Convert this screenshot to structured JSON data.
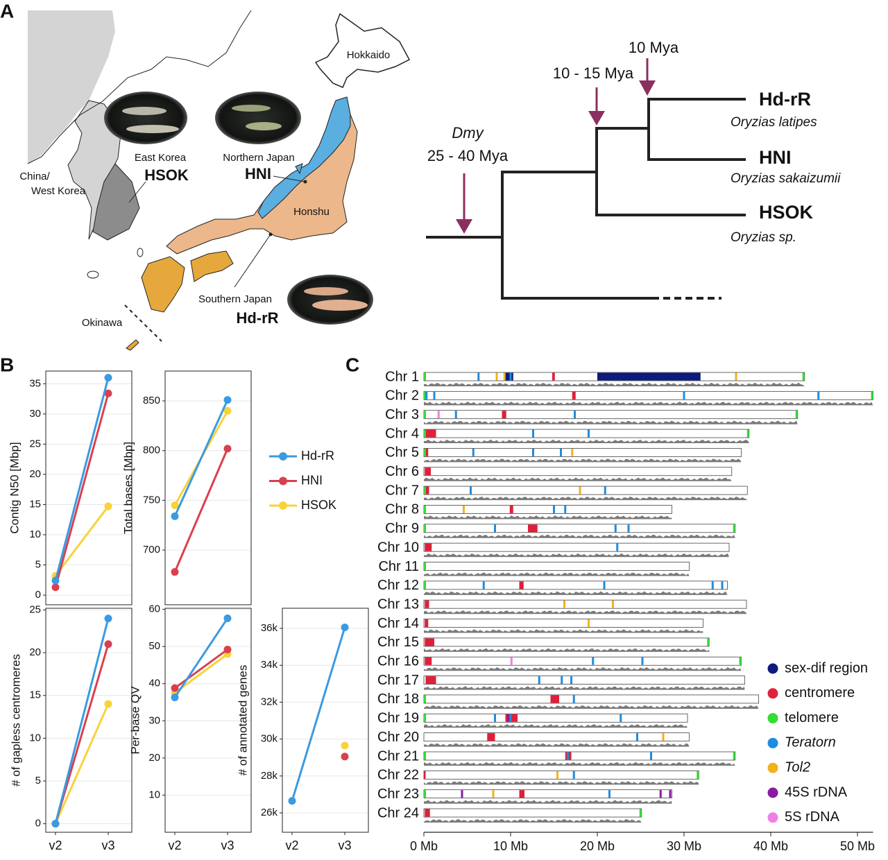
{
  "panel_labels": [
    "A",
    "B",
    "C"
  ],
  "panel_a": {
    "map": {
      "hokkaido": "Hokkaido",
      "east_korea": "East Korea",
      "hsok": "HSOK",
      "northern_japan": "Northern Japan",
      "hni": "HNI",
      "china": "China/",
      "west_korea": "West Korea",
      "honshu": "Honshu",
      "southern_japan": "Southern Japan",
      "hdrr": "Hd-rR",
      "okinawa": "Okinawa"
    },
    "tree": {
      "dmy": "Dmy",
      "dmy_age": "25 - 40 Mya",
      "split_age": "10 - 15 Mya",
      "latest_age": "10 Mya",
      "taxa": [
        {
          "strain": "Hd-rR",
          "species": "Oryzias latipes"
        },
        {
          "strain": "HNI",
          "species": "Oryzias sakaizumii"
        },
        {
          "strain": "HSOK",
          "species": "Oryzias sp."
        }
      ]
    }
  },
  "chart_data": [
    {
      "type": "line",
      "y_label": "Contig N50 [Mbp]",
      "ylim": [
        -1.6,
        37.1
      ],
      "yticks": [
        0,
        5,
        10,
        15,
        20,
        25,
        30,
        35
      ],
      "grid": true,
      "series": [
        {
          "name": "Hd-rR",
          "color": "#3b9ae1",
          "values": [
            2.4,
            36.0
          ]
        },
        {
          "name": "HNI",
          "color": "#d9404f",
          "values": [
            1.3,
            33.4
          ]
        },
        {
          "name": "HSOK",
          "color": "#f7d33a",
          "values": [
            3.2,
            14.7
          ]
        }
      ]
    },
    {
      "type": "line",
      "y_label": "Total bases [Mbp]",
      "ylim": [
        645,
        880
      ],
      "yticks": [
        700,
        750,
        800,
        850
      ],
      "grid": true,
      "series": [
        {
          "values": [
            734,
            851
          ]
        },
        {
          "values": [
            678,
            802
          ]
        },
        {
          "values": [
            745,
            840
          ]
        }
      ]
    },
    {
      "type": "line",
      "y_label": "# of gapless centromeres",
      "categories": [
        "v2",
        "v3"
      ],
      "ylim": [
        -1.0,
        25.2
      ],
      "yticks": [
        0,
        5,
        10,
        15,
        20,
        25
      ],
      "grid": true,
      "series": [
        {
          "values": [
            0,
            24
          ]
        },
        {
          "values": [
            0,
            21
          ]
        },
        {
          "values": [
            0,
            14
          ]
        }
      ]
    },
    {
      "type": "line",
      "y_label": "Per-base QV",
      "categories": [
        "v2",
        "v3"
      ],
      "ylim": [
        0,
        60.3
      ],
      "yticks": [
        10,
        20,
        30,
        40,
        50,
        60
      ],
      "grid": true,
      "series": [
        {
          "values": [
            36.3,
            57.6
          ]
        },
        {
          "values": [
            38.8,
            49.2
          ]
        },
        {
          "values": [
            37.5,
            48.0
          ]
        }
      ]
    },
    {
      "type": "line",
      "y_label": "# of annotated genes",
      "categories": [
        "v2",
        "v3"
      ],
      "ylim": [
        24950,
        37090
      ],
      "yticks": [
        {
          "value": 26000,
          "label": "26k"
        },
        {
          "value": 28000,
          "label": "28k"
        },
        {
          "value": 30000,
          "label": "30k"
        },
        {
          "value": 32000,
          "label": "32k"
        },
        {
          "value": 34000,
          "label": "34k"
        },
        {
          "value": 36000,
          "label": "36k"
        }
      ],
      "grid": true,
      "series": [
        {
          "values": [
            26650,
            36050
          ]
        },
        {
          "values": [
            null,
            29050
          ]
        },
        {
          "values": [
            null,
            29650
          ]
        }
      ]
    },
    {
      "type": "chromosome-map",
      "categories": [
        "Chr 1",
        "Chr 2",
        "Chr 3",
        "Chr 4",
        "Chr 5",
        "Chr 6",
        "Chr 7",
        "Chr 8",
        "Chr 9",
        "Chr 10",
        "Chr 11",
        "Chr 12",
        "Chr 13",
        "Chr 14",
        "Chr 15",
        "Chr 16",
        "Chr 17",
        "Chr 18",
        "Chr 19",
        "Chr 20",
        "Chr 21",
        "Chr 22",
        "Chr 23",
        "Chr 24"
      ],
      "values": [
        43.9,
        51.8,
        43.1,
        37.5,
        36.6,
        35.5,
        37.3,
        28.6,
        35.9,
        35.2,
        30.6,
        35.0,
        37.2,
        32.2,
        32.9,
        36.6,
        37.0,
        38.6,
        30.4,
        30.6,
        35.9,
        31.7,
        28.6,
        25.1
      ],
      "xlim": [
        0,
        51.8
      ],
      "xticks": [
        {
          "value": 0,
          "label": "0 Mb"
        },
        {
          "value": 10,
          "label": "10 Mb"
        },
        {
          "value": 20,
          "label": "20 Mb"
        },
        {
          "value": 30,
          "label": "30 Mb"
        },
        {
          "value": 40,
          "label": "40 Mb"
        },
        {
          "value": 50,
          "label": "50 Mb"
        }
      ],
      "series": [
        {
          "name": "sex-dif region",
          "color": "#0d1a7e",
          "values": [
            [
              [
                9.4,
                10.3
              ],
              [
                20.0,
                31.9
              ]
            ],
            [],
            [],
            [],
            [],
            [],
            [],
            [],
            [],
            [],
            [],
            [],
            [],
            [],
            [],
            [],
            [],
            [],
            [],
            [],
            [],
            [],
            [],
            []
          ]
        },
        {
          "name": "centromere",
          "color": "#e0203a",
          "values": [
            [
              [
                14.8,
                15.1
              ]
            ],
            [
              [
                17.1,
                17.5
              ]
            ],
            [
              [
                9.0,
                9.5
              ]
            ],
            [
              [
                0.2,
                1.4
              ]
            ],
            [
              [
                0.1,
                0.5
              ]
            ],
            [
              [
                0.1,
                0.8
              ]
            ],
            [
              [
                0.1,
                0.6
              ]
            ],
            [
              [
                9.9,
                10.3
              ]
            ],
            [
              [
                12.0,
                13.1
              ]
            ],
            [
              [
                0.1,
                0.9
              ]
            ],
            [
              [
                0.0,
                0.2
              ]
            ],
            [
              [
                11.0,
                11.5
              ]
            ],
            [
              [
                0.1,
                0.6
              ]
            ],
            [
              [
                0.1,
                0.5
              ]
            ],
            [
              [
                0.1,
                1.2
              ]
            ],
            [
              [
                0.1,
                0.9
              ]
            ],
            [
              [
                0.2,
                1.4
              ]
            ],
            [
              [
                14.6,
                15.6
              ]
            ],
            [
              [
                9.4,
                10.8
              ]
            ],
            [
              [
                7.3,
                8.2
              ]
            ],
            [
              [
                16.3,
                17.0
              ]
            ],
            [
              [
                0.0,
                0.2
              ]
            ],
            [
              [
                11.0,
                11.6
              ]
            ],
            [
              [
                0.1,
                0.7
              ]
            ]
          ]
        },
        {
          "name": "telomere",
          "color": "#33dd33",
          "values": [
            [
              0,
              43.9
            ],
            [
              0,
              51.8
            ],
            [
              0,
              43.1
            ],
            [
              0,
              37.5
            ],
            [
              0
            ],
            [],
            [
              0
            ],
            [
              0
            ],
            [
              0,
              35.9
            ],
            [],
            [
              0
            ],
            [
              0
            ],
            [],
            [],
            [
              32.9
            ],
            [
              36.6
            ],
            [],
            [
              0
            ],
            [
              0
            ],
            [],
            [
              0,
              35.9
            ],
            [
              31.7
            ],
            [
              0
            ],
            [
              25.1
            ]
          ]
        },
        {
          "name": "Teratorn",
          "color": "#1e8ce0",
          "italic": true,
          "values": [
            [
              6.3,
              10.0
            ],
            [
              0.3,
              1.2,
              30.0,
              45.5
            ],
            [
              3.7,
              17.4
            ],
            [
              12.6,
              19.0
            ],
            [
              5.7,
              12.6,
              15.8
            ],
            [],
            [
              5.4,
              20.9
            ],
            [
              15.0,
              16.3
            ],
            [
              8.2,
              22.1,
              23.6
            ],
            [
              22.3
            ],
            [],
            [
              6.9,
              20.8,
              33.3,
              34.4
            ],
            [],
            [],
            [],
            [
              19.5,
              25.2
            ],
            [
              13.3,
              15.9,
              17.0
            ],
            [
              17.3
            ],
            [
              8.2,
              10.0,
              22.7
            ],
            [
              24.6
            ],
            [
              16.6,
              26.2
            ],
            [
              17.3
            ],
            [
              21.4
            ],
            []
          ]
        },
        {
          "name": "Tol2",
          "color": "#f2b21b",
          "italic": true,
          "values": [
            [
              8.4,
              9.3,
              36.0
            ],
            [],
            [],
            [],
            [
              17.1
            ],
            [],
            [
              18.0
            ],
            [
              4.6
            ],
            [],
            [],
            [],
            [],
            [
              16.2,
              21.8
            ],
            [
              19.0
            ],
            [],
            [],
            [],
            [],
            [],
            [
              27.6
            ],
            [],
            [
              15.4
            ],
            [
              8.0
            ],
            []
          ]
        },
        {
          "name": "45S rDNA",
          "color": "#8a1aa3",
          "values": [
            [],
            [],
            [],
            [],
            [],
            [],
            [],
            [],
            [],
            [],
            [],
            [],
            [],
            [],
            [],
            [],
            [],
            [],
            [
              9.7
            ],
            [],
            [],
            [],
            [
              4.4,
              27.3,
              28.4
            ],
            []
          ]
        },
        {
          "name": "5S rDNA",
          "color": "#f07fe6",
          "values": [
            [],
            [],
            [
              1.7
            ],
            [],
            [],
            [],
            [],
            [],
            [],
            [],
            [],
            [],
            [],
            [],
            [],
            [
              10.1
            ],
            [],
            [],
            [],
            [],
            [],
            [],
            [],
            []
          ]
        }
      ]
    }
  ]
}
